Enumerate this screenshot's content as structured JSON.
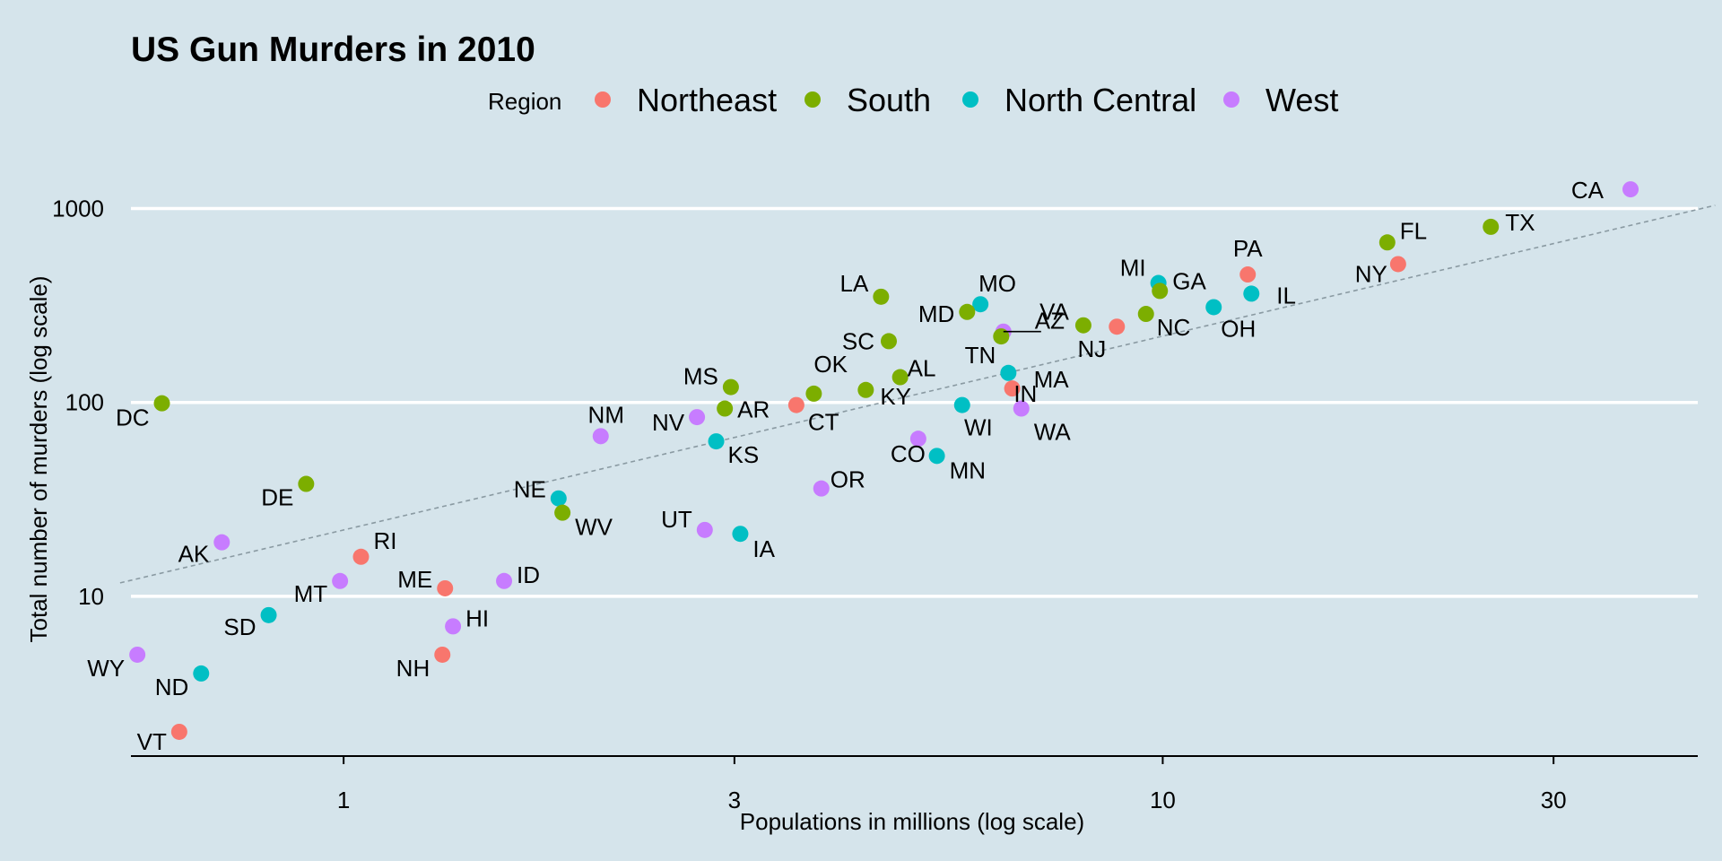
{
  "chart_data": {
    "type": "scatter",
    "title": "US Gun Murders in 2010",
    "xlabel": "Populations in millions (log scale)",
    "ylabel": "Total number of murders (log scale)",
    "x_scale": "log10",
    "y_scale": "log10",
    "xlim": [
      0.55,
      45
    ],
    "ylim": [
      1.5,
      1750
    ],
    "x_ticks": [
      1,
      3,
      10,
      30
    ],
    "y_ticks": [
      10,
      100,
      1000
    ],
    "legend": {
      "title": "Region",
      "placement": "top",
      "items": [
        {
          "name": "Northeast",
          "color": "#f8766d"
        },
        {
          "name": "South",
          "color": "#7cae00"
        },
        {
          "name": "North Central",
          "color": "#00bfc4"
        },
        {
          "name": "West",
          "color": "#c77cff"
        }
      ]
    },
    "reference_line": {
      "style": "dashed",
      "color": "#8a9aa2",
      "description": "average murder rate"
    },
    "points": [
      {
        "state": "CA",
        "x": 37.25,
        "y": 1257,
        "region": "West"
      },
      {
        "state": "TX",
        "x": 25.15,
        "y": 805,
        "region": "South"
      },
      {
        "state": "FL",
        "x": 18.8,
        "y": 669,
        "region": "South"
      },
      {
        "state": "NY",
        "x": 19.38,
        "y": 517,
        "region": "Northeast"
      },
      {
        "state": "PA",
        "x": 12.7,
        "y": 457,
        "region": "Northeast"
      },
      {
        "state": "MI",
        "x": 9.88,
        "y": 413,
        "region": "North Central"
      },
      {
        "state": "GA",
        "x": 9.92,
        "y": 376,
        "region": "South"
      },
      {
        "state": "IL",
        "x": 12.83,
        "y": 364,
        "region": "North Central"
      },
      {
        "state": "OH",
        "x": 11.54,
        "y": 310,
        "region": "North Central"
      },
      {
        "state": "NC",
        "x": 9.54,
        "y": 286,
        "region": "South"
      },
      {
        "state": "NJ",
        "x": 8.79,
        "y": 246,
        "region": "Northeast"
      },
      {
        "state": "VA",
        "x": 8.0,
        "y": 250,
        "region": "South"
      },
      {
        "state": "AZ",
        "x": 6.39,
        "y": 232,
        "region": "West"
      },
      {
        "state": "TN",
        "x": 6.35,
        "y": 219,
        "region": "South"
      },
      {
        "state": "IN",
        "x": 6.48,
        "y": 142,
        "region": "North Central"
      },
      {
        "state": "MA",
        "x": 6.55,
        "y": 118,
        "region": "Northeast"
      },
      {
        "state": "WA",
        "x": 6.72,
        "y": 93,
        "region": "West"
      },
      {
        "state": "WI",
        "x": 5.69,
        "y": 97,
        "region": "North Central"
      },
      {
        "state": "MO",
        "x": 5.99,
        "y": 321,
        "region": "North Central"
      },
      {
        "state": "MD",
        "x": 5.77,
        "y": 293,
        "region": "South"
      },
      {
        "state": "LA",
        "x": 4.53,
        "y": 351,
        "region": "South"
      },
      {
        "state": "SC",
        "x": 4.63,
        "y": 207,
        "region": "South"
      },
      {
        "state": "AL",
        "x": 4.78,
        "y": 135,
        "region": "South"
      },
      {
        "state": "KY",
        "x": 4.34,
        "y": 116,
        "region": "South"
      },
      {
        "state": "CO",
        "x": 5.03,
        "y": 65,
        "region": "West"
      },
      {
        "state": "MN",
        "x": 5.3,
        "y": 53,
        "region": "North Central"
      },
      {
        "state": "OK",
        "x": 3.75,
        "y": 111,
        "region": "South"
      },
      {
        "state": "CT",
        "x": 3.57,
        "y": 97,
        "region": "Northeast"
      },
      {
        "state": "OR",
        "x": 3.83,
        "y": 36,
        "region": "West"
      },
      {
        "state": "MS",
        "x": 2.97,
        "y": 120,
        "region": "South"
      },
      {
        "state": "AR",
        "x": 2.92,
        "y": 93,
        "region": "South"
      },
      {
        "state": "NV",
        "x": 2.7,
        "y": 84,
        "region": "West"
      },
      {
        "state": "KS",
        "x": 2.85,
        "y": 63,
        "region": "North Central"
      },
      {
        "state": "IA",
        "x": 3.05,
        "y": 21,
        "region": "North Central"
      },
      {
        "state": "UT",
        "x": 2.76,
        "y": 22,
        "region": "West"
      },
      {
        "state": "NM",
        "x": 2.06,
        "y": 67,
        "region": "West"
      },
      {
        "state": "NE",
        "x": 1.83,
        "y": 32,
        "region": "North Central"
      },
      {
        "state": "WV",
        "x": 1.85,
        "y": 27,
        "region": "South"
      },
      {
        "state": "ID",
        "x": 1.57,
        "y": 12,
        "region": "West"
      },
      {
        "state": "ME",
        "x": 1.33,
        "y": 11,
        "region": "Northeast"
      },
      {
        "state": "NH",
        "x": 1.32,
        "y": 5,
        "region": "Northeast"
      },
      {
        "state": "HI",
        "x": 1.36,
        "y": 7,
        "region": "West"
      },
      {
        "state": "RI",
        "x": 1.05,
        "y": 16,
        "region": "Northeast"
      },
      {
        "state": "MT",
        "x": 0.99,
        "y": 12,
        "region": "West"
      },
      {
        "state": "DE",
        "x": 0.9,
        "y": 38,
        "region": "South"
      },
      {
        "state": "SD",
        "x": 0.81,
        "y": 8,
        "region": "North Central"
      },
      {
        "state": "AK",
        "x": 0.71,
        "y": 19,
        "region": "West"
      },
      {
        "state": "ND",
        "x": 0.67,
        "y": 4,
        "region": "North Central"
      },
      {
        "state": "VT",
        "x": 0.63,
        "y": 2,
        "region": "Northeast"
      },
      {
        "state": "WY",
        "x": 0.56,
        "y": 5,
        "region": "West"
      },
      {
        "state": "DC",
        "x": 0.6,
        "y": 99,
        "region": "South"
      }
    ]
  }
}
